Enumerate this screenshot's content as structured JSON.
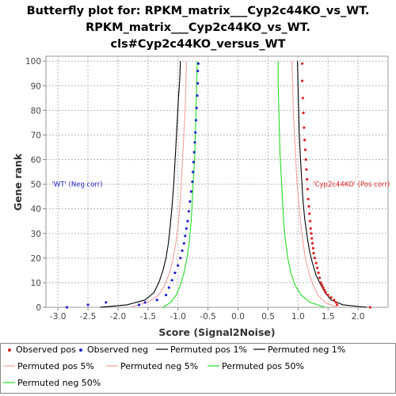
{
  "chart_data": {
    "type": "line",
    "title_lines": [
      "Butterfly plot for: RPKM_matrix___Cyp2c44KO_vs_WT.",
      "RPKM_matrix___Cyp2c44KO_vs_WT.",
      "cls#Cyp2c44KO_versus_WT"
    ],
    "xlabel": "Score (Signal2Noise)",
    "ylabel": "Gene rank",
    "xlim": [
      -3.2,
      2.5
    ],
    "ylim": [
      0,
      102
    ],
    "x_ticks": [
      "-3.0",
      "-2.5",
      "-2.0",
      "-1.5",
      "-1.0",
      "-0.5",
      "0.0",
      "0.5",
      "1.0",
      "1.5",
      "2.0"
    ],
    "y_ticks": [
      "0",
      "10",
      "20",
      "30",
      "40",
      "50",
      "60",
      "70",
      "80",
      "90",
      "100"
    ],
    "grid": true,
    "annotations": [
      {
        "text": "'WT' (Neg corr)",
        "x": -3.1,
        "y": 49,
        "color": "#2222cc"
      },
      {
        "text": "'Cyp2c44KO' (Pos corr)",
        "x": 1.25,
        "y": 49,
        "color": "#dd2222"
      }
    ],
    "observed_pos": [
      [
        2.2,
        0
      ],
      [
        1.65,
        1
      ],
      [
        1.63,
        2
      ],
      [
        1.6,
        3
      ],
      [
        1.55,
        4
      ],
      [
        1.5,
        5
      ],
      [
        1.46,
        6
      ],
      [
        1.44,
        7
      ],
      [
        1.42,
        8
      ],
      [
        1.4,
        9
      ],
      [
        1.38,
        10
      ],
      [
        1.36,
        12
      ],
      [
        1.34,
        14
      ],
      [
        1.32,
        16
      ],
      [
        1.3,
        18
      ],
      [
        1.28,
        20
      ],
      [
        1.26,
        22
      ],
      [
        1.25,
        24
      ],
      [
        1.24,
        26
      ],
      [
        1.23,
        28
      ],
      [
        1.22,
        30
      ],
      [
        1.21,
        32
      ],
      [
        1.2,
        35
      ],
      [
        1.19,
        38
      ],
      [
        1.18,
        41
      ],
      [
        1.17,
        44
      ],
      [
        1.16,
        48
      ],
      [
        1.15,
        52
      ],
      [
        1.14,
        56
      ],
      [
        1.13,
        60
      ],
      [
        1.12,
        64
      ],
      [
        1.11,
        68
      ],
      [
        1.1,
        73
      ],
      [
        1.09,
        79
      ],
      [
        1.08,
        85
      ],
      [
        1.07,
        92
      ],
      [
        1.07,
        99
      ]
    ],
    "observed_neg": [
      [
        -2.85,
        0
      ],
      [
        -2.5,
        1
      ],
      [
        -2.2,
        2
      ],
      [
        -1.65,
        1
      ],
      [
        -1.55,
        2
      ],
      [
        -1.35,
        3
      ],
      [
        -1.2,
        5
      ],
      [
        -1.15,
        8
      ],
      [
        -1.1,
        11
      ],
      [
        -1.05,
        14
      ],
      [
        -1.0,
        17
      ],
      [
        -0.96,
        20
      ],
      [
        -0.93,
        23
      ],
      [
        -0.9,
        26
      ],
      [
        -0.88,
        29
      ],
      [
        -0.86,
        32
      ],
      [
        -0.84,
        35
      ],
      [
        -0.82,
        39
      ],
      [
        -0.8,
        43
      ],
      [
        -0.78,
        47
      ],
      [
        -0.76,
        51
      ],
      [
        -0.75,
        55
      ],
      [
        -0.74,
        59
      ],
      [
        -0.73,
        63
      ],
      [
        -0.72,
        67
      ],
      [
        -0.71,
        71
      ],
      [
        -0.7,
        76
      ],
      [
        -0.69,
        81
      ],
      [
        -0.68,
        86
      ],
      [
        -0.67,
        91
      ],
      [
        -0.67,
        96
      ],
      [
        -0.66,
        99
      ]
    ],
    "series": [
      {
        "name": "Permuted pos 1%",
        "color": "#000000",
        "side": "pos",
        "points": [
          [
            2.15,
            0
          ],
          [
            1.75,
            1
          ],
          [
            1.55,
            3
          ],
          [
            1.45,
            6
          ],
          [
            1.38,
            9
          ],
          [
            1.3,
            13
          ],
          [
            1.24,
            18
          ],
          [
            1.19,
            23
          ],
          [
            1.15,
            29
          ],
          [
            1.11,
            36
          ],
          [
            1.08,
            44
          ],
          [
            1.06,
            52
          ],
          [
            1.04,
            61
          ],
          [
            1.02,
            71
          ],
          [
            1.01,
            80
          ],
          [
            1.0,
            90
          ],
          [
            0.99,
            100
          ]
        ]
      },
      {
        "name": "Permuted neg 1%",
        "color": "#000000",
        "side": "neg",
        "points": [
          [
            -2.3,
            0
          ],
          [
            -1.85,
            1
          ],
          [
            -1.55,
            3
          ],
          [
            -1.4,
            6
          ],
          [
            -1.32,
            10
          ],
          [
            -1.25,
            15
          ],
          [
            -1.2,
            20
          ],
          [
            -1.16,
            26
          ],
          [
            -1.13,
            33
          ],
          [
            -1.1,
            41
          ],
          [
            -1.07,
            50
          ],
          [
            -1.05,
            59
          ],
          [
            -1.03,
            68
          ],
          [
            -1.01,
            77
          ],
          [
            -0.99,
            86
          ],
          [
            -0.97,
            93
          ],
          [
            -0.96,
            100
          ]
        ]
      },
      {
        "name": "Permuted pos 5%",
        "color": "#f4a0a0",
        "side": "pos",
        "points": [
          [
            1.65,
            0
          ],
          [
            1.45,
            2
          ],
          [
            1.33,
            5
          ],
          [
            1.25,
            9
          ],
          [
            1.18,
            14
          ],
          [
            1.12,
            20
          ],
          [
            1.08,
            27
          ],
          [
            1.04,
            35
          ],
          [
            1.01,
            43
          ],
          [
            0.98,
            52
          ],
          [
            0.96,
            61
          ],
          [
            0.94,
            70
          ],
          [
            0.92,
            80
          ],
          [
            0.91,
            90
          ],
          [
            0.9,
            100
          ]
        ]
      },
      {
        "name": "Permuted neg 5%",
        "color": "#f4a0a0",
        "side": "neg",
        "points": [
          [
            -1.8,
            0
          ],
          [
            -1.5,
            2
          ],
          [
            -1.32,
            5
          ],
          [
            -1.22,
            9
          ],
          [
            -1.14,
            14
          ],
          [
            -1.08,
            20
          ],
          [
            -1.03,
            27
          ],
          [
            -0.99,
            35
          ],
          [
            -0.96,
            44
          ],
          [
            -0.94,
            53
          ],
          [
            -0.92,
            62
          ],
          [
            -0.9,
            71
          ],
          [
            -0.88,
            80
          ],
          [
            -0.87,
            90
          ],
          [
            -0.86,
            100
          ]
        ]
      },
      {
        "name": "Permuted pos 50%",
        "color": "#22dd22",
        "side": "pos",
        "points": [
          [
            1.45,
            0
          ],
          [
            1.2,
            2
          ],
          [
            1.05,
            5
          ],
          [
            0.95,
            9
          ],
          [
            0.88,
            14
          ],
          [
            0.83,
            20
          ],
          [
            0.79,
            27
          ],
          [
            0.76,
            35
          ],
          [
            0.74,
            44
          ],
          [
            0.72,
            53
          ],
          [
            0.7,
            62
          ],
          [
            0.69,
            71
          ],
          [
            0.68,
            80
          ],
          [
            0.67,
            90
          ],
          [
            0.67,
            100
          ]
        ]
      },
      {
        "name": "Permuted neg 50%",
        "color": "#22dd22",
        "side": "neg",
        "points": [
          [
            -1.25,
            0
          ],
          [
            -1.12,
            2
          ],
          [
            -1.03,
            5
          ],
          [
            -0.96,
            9
          ],
          [
            -0.9,
            14
          ],
          [
            -0.85,
            20
          ],
          [
            -0.81,
            27
          ],
          [
            -0.78,
            35
          ],
          [
            -0.76,
            44
          ],
          [
            -0.74,
            53
          ],
          [
            -0.72,
            62
          ],
          [
            -0.71,
            71
          ],
          [
            -0.7,
            80
          ],
          [
            -0.69,
            90
          ],
          [
            -0.68,
            100
          ]
        ]
      }
    ],
    "legend": {
      "position": "bottom",
      "entries": [
        {
          "label": "Observed pos",
          "color": "#dd2222",
          "marker": "dot"
        },
        {
          "label": "Observed neg",
          "color": "#2222cc",
          "marker": "dot"
        },
        {
          "label": "Permuted pos 1%",
          "color": "#000000",
          "marker": "line"
        },
        {
          "label": "Permuted neg 1%",
          "color": "#000000",
          "marker": "line"
        },
        {
          "label": "Permuted pos 5%",
          "color": "#f4a0a0",
          "marker": "line"
        },
        {
          "label": "Permuted neg 5%",
          "color": "#f4a0a0",
          "marker": "line"
        },
        {
          "label": "Permuted pos 50%",
          "color": "#22dd22",
          "marker": "line"
        },
        {
          "label": "Permuted neg 50%",
          "color": "#22dd22",
          "marker": "line"
        }
      ]
    }
  }
}
